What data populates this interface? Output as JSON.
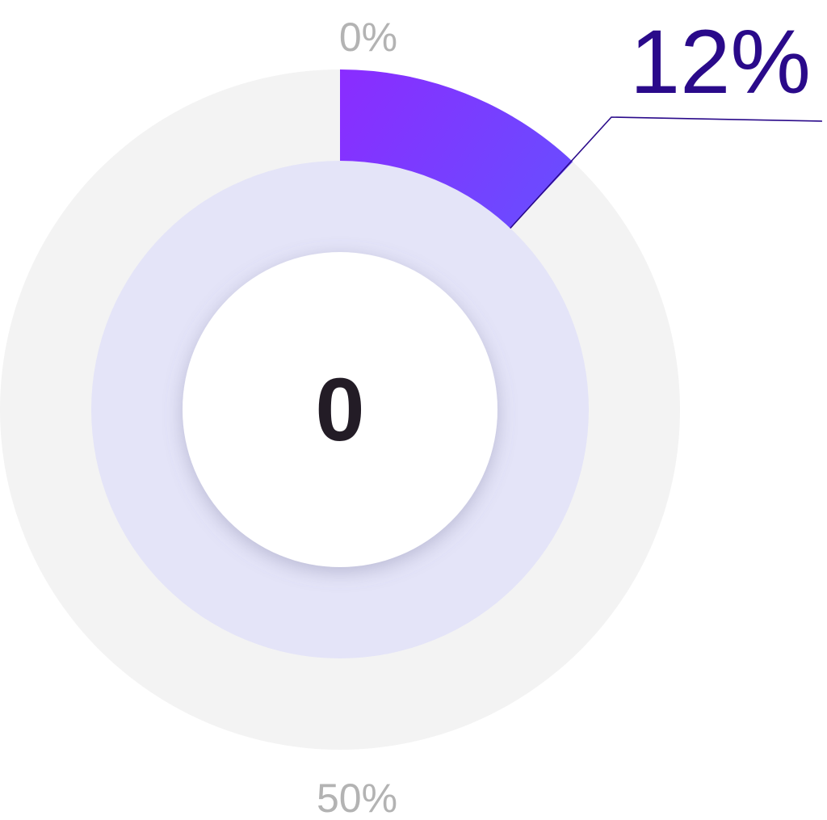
{
  "chart_data": {
    "type": "pie",
    "values": [
      12
    ],
    "value_unit": "%",
    "max": 100,
    "value_label": "12%",
    "center_label": "0",
    "tick_labels": [
      "0%",
      "50%"
    ],
    "grid": false,
    "colors": {
      "track": "#f3f3f3",
      "inner_ring": "#e4e4f8",
      "center": "#ffffff",
      "fill_start": "#8a2cff",
      "fill_end": "#5a5cff",
      "value_text": "#2a0a8a",
      "leader_line": "#2a0a8a",
      "center_text": "#231c26",
      "tick_text": "#b3b3b3"
    }
  }
}
